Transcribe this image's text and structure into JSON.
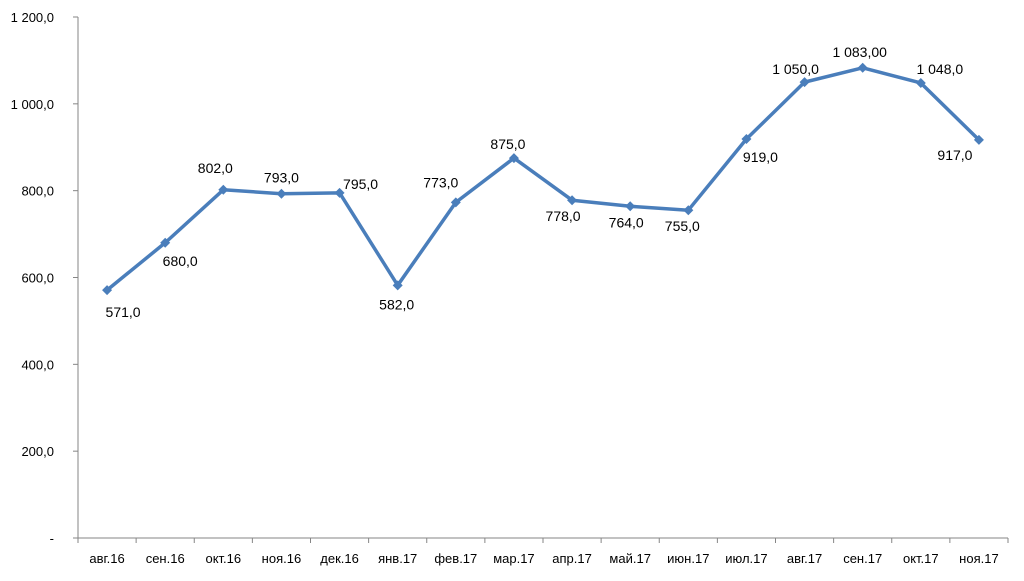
{
  "chart_data": {
    "type": "line",
    "categories": [
      "авг.16",
      "сен.16",
      "окт.16",
      "ноя.16",
      "дек.16",
      "янв.17",
      "фев.17",
      "мар.17",
      "апр.17",
      "май.17",
      "июн.17",
      "июл.17",
      "авг.17",
      "сен.17",
      "окт.17",
      "ноя.17"
    ],
    "series": [
      {
        "values": [
          571,
          680,
          802,
          793,
          795,
          582,
          773,
          875,
          778,
          764,
          755,
          919,
          1050,
          1083,
          1048,
          917
        ],
        "labels": [
          "571,0",
          "680,0",
          "802,0",
          "793,0",
          "795,0",
          "582,0",
          "773,0",
          "875,0",
          "778,0",
          "764,0",
          "755,0",
          "919,0",
          "1 050,0",
          "1 083,00",
          "1 048,0",
          "917,0"
        ],
        "color": "#4a7ebb",
        "marker": "diamond"
      }
    ],
    "y_ticks": [
      {
        "value": 0,
        "label": "-"
      },
      {
        "value": 200,
        "label": "200,0"
      },
      {
        "value": 400,
        "label": "400,0"
      },
      {
        "value": 600,
        "label": "600,0"
      },
      {
        "value": 800,
        "label": "800,0"
      },
      {
        "value": 1000,
        "label": "1 000,0"
      },
      {
        "value": 1200,
        "label": "1 200,0"
      }
    ],
    "ylim": [
      0,
      1200
    ],
    "grid": false,
    "legend": "none",
    "title": "",
    "xlabel": "",
    "ylabel": ""
  }
}
